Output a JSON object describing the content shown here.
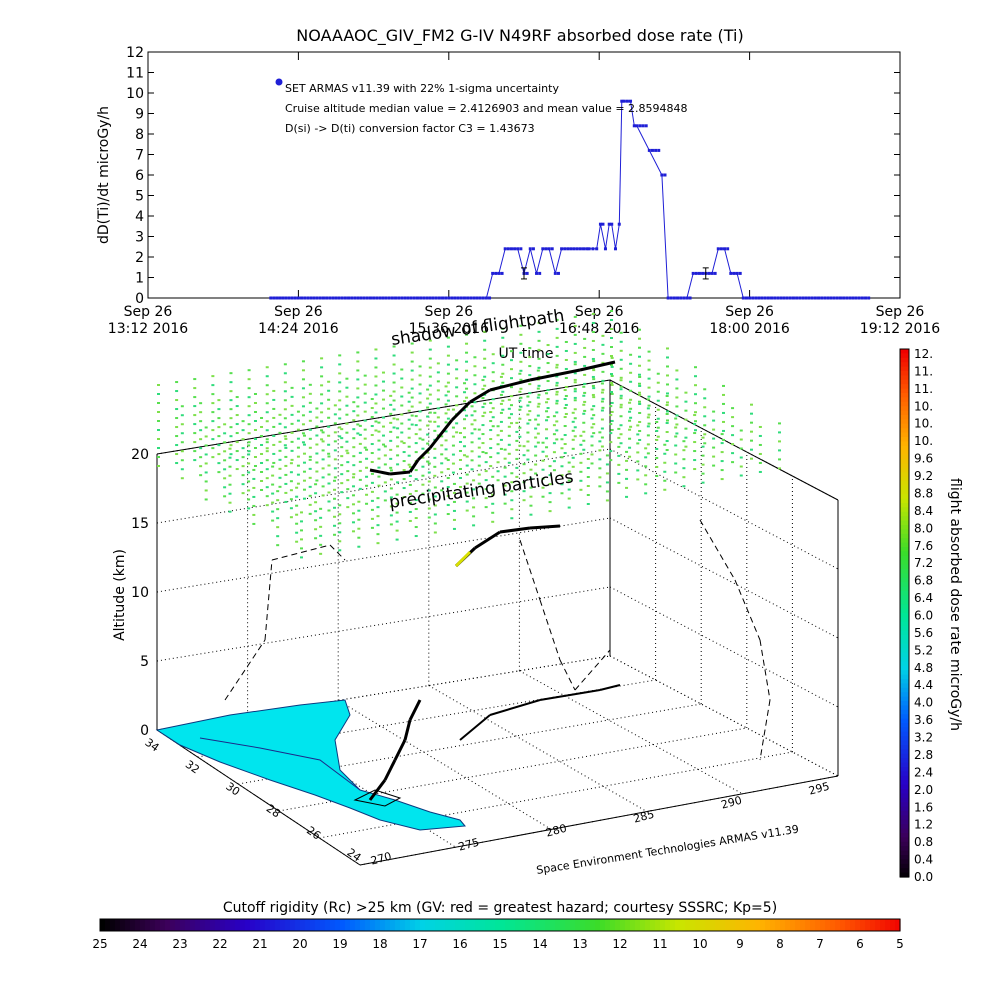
{
  "chart_data": [
    {
      "type": "line",
      "title": "NOAAAOC_GIV_FM2 G-IV    N49RF  absorbed dose rate (Ti)",
      "ylabel": "dD(Ti)/dt microGy/h",
      "xlabel": "UT time",
      "ylim": [
        0,
        12
      ],
      "yticks": [
        "0",
        "1",
        "2",
        "3",
        "4",
        "5",
        "6",
        "7",
        "8",
        "9",
        "10",
        "11",
        "12"
      ],
      "xticks": [
        {
          "date": "Sep 26",
          "time": "13:12 2016"
        },
        {
          "date": "Sep 26",
          "time": "14:24 2016"
        },
        {
          "date": "Sep 26",
          "time": "15:36 2016"
        },
        {
          "date": "Sep 26",
          "time": "16:48 2016"
        },
        {
          "date": "Sep 26",
          "time": "18:00 2016"
        },
        {
          "date": "Sep 26",
          "time": "19:12 2016"
        }
      ],
      "annotations": [
        "SET ARMAS v11.39 with 22% 1-sigma uncertainty",
        "Cruise altitude median value = 2.4126903 and mean value = 2.8594848",
        "D(si) -> D(ti) conversion factor C3 = 1.43673"
      ],
      "series": [
        {
          "color": "#1f1fd6",
          "x_hours": [
            14.18,
            14.4,
            14.6,
            14.8,
            15.0,
            15.2,
            15.4,
            15.6,
            15.8,
            15.9,
            15.95,
            16.0,
            16.05,
            16.1,
            16.15,
            16.2,
            16.25,
            16.3,
            16.35,
            16.4,
            16.45,
            16.5,
            16.55,
            16.6,
            16.65,
            16.7,
            16.72,
            16.75,
            16.78,
            16.81,
            16.85,
            16.88,
            16.9,
            16.93,
            16.96,
            16.98,
            17.0,
            17.05,
            17.08,
            17.1,
            17.2,
            17.3,
            17.35,
            17.4,
            17.45,
            17.5,
            17.55,
            17.6,
            17.65,
            17.7,
            17.75,
            17.8,
            17.85,
            17.9,
            17.95,
            18.0,
            18.2,
            18.4,
            18.6,
            18.8,
            18.95
          ],
          "values": [
            0,
            0,
            0,
            0,
            0,
            0,
            0,
            0,
            0,
            0,
            1.2,
            1.2,
            2.4,
            2.4,
            2.4,
            1.2,
            2.4,
            1.2,
            2.4,
            2.4,
            1.2,
            2.4,
            2.4,
            2.4,
            2.4,
            2.4,
            2.4,
            2.4,
            2.4,
            3.6,
            2.4,
            3.6,
            3.6,
            2.4,
            3.6,
            9.6,
            9.6,
            9.6,
            8.4,
            8.4,
            7.2,
            6.0,
            0,
            0,
            0,
            0,
            1.2,
            1.2,
            1.2,
            1.2,
            2.4,
            2.4,
            1.2,
            1.2,
            0,
            0,
            0,
            0,
            0,
            0,
            0
          ]
        }
      ]
    },
    {
      "type": "scatter",
      "title": "precipitating particles",
      "labels": [
        "shadow of flightpath",
        "precipitating particles"
      ],
      "zlabel": "Altitude (km)",
      "zticks": [
        "0",
        "5",
        "10",
        "15",
        "20"
      ],
      "lat_ticks": [
        "24",
        "26",
        "28",
        "30",
        "32",
        "34"
      ],
      "lon_ticks": [
        "270",
        "275",
        "280",
        "285",
        "290",
        "295"
      ],
      "credit": "Space Environment Technologies ARMAS v11.39"
    },
    {
      "type": "heatmap",
      "title": "flight absorbed dose rate microGy/h",
      "colorbar_ticks": [
        "12.",
        "11.",
        "11.",
        "10.",
        "10.",
        "10.",
        "9.6",
        "9.2",
        "8.8",
        "8.4",
        "8.0",
        "7.6",
        "7.2",
        "6.8",
        "6.4",
        "6.0",
        "5.6",
        "5.2",
        "4.8",
        "4.4",
        "4.0",
        "3.6",
        "3.2",
        "2.8",
        "2.4",
        "2.0",
        "1.6",
        "1.2",
        "0.8",
        "0.4",
        "0.0"
      ]
    },
    {
      "type": "heatmap",
      "title": "Cutoff rigidity (Rc) >25 km (GV: red = greatest hazard; courtesy SSSRC; Kp=5)",
      "colorbar_ticks": [
        "25",
        "24",
        "23",
        "22",
        "21",
        "20",
        "19",
        "18",
        "17",
        "16",
        "15",
        "14",
        "13",
        "12",
        "11",
        "10",
        "9",
        "8",
        "7",
        "6",
        "5"
      ]
    }
  ],
  "colors": {
    "series": "#1f1fd6",
    "land": "#00e5ee",
    "track": "#000000"
  }
}
